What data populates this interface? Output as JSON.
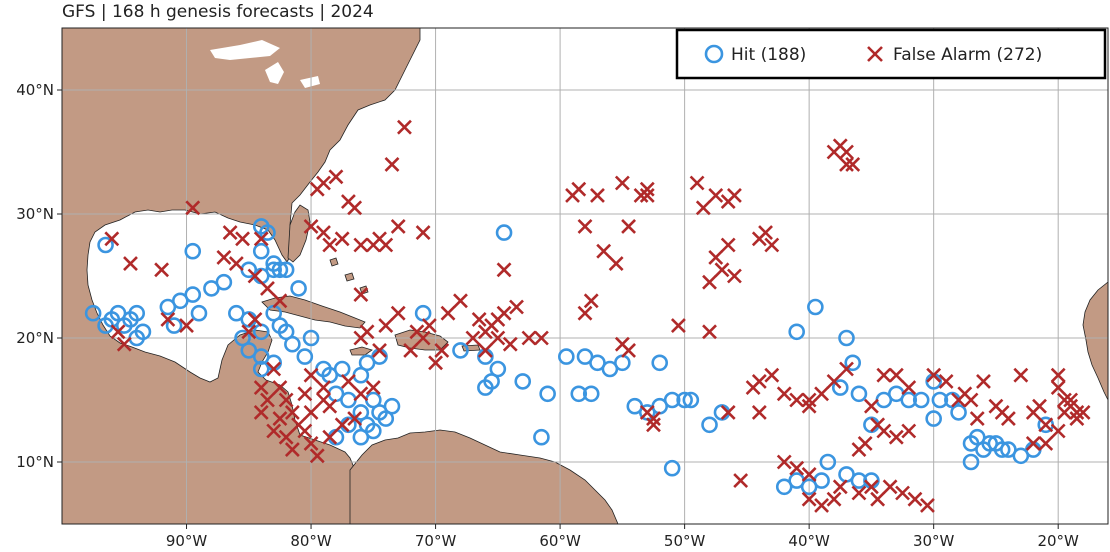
{
  "title": "GFS | 168 h genesis forecasts | 2024",
  "map": {
    "projection": "PlateCarree",
    "lon_range": [
      -100,
      -16
    ],
    "lat_range": [
      5,
      45
    ],
    "gridlines": true,
    "land_color": "#c29a84",
    "ocean_color": "#ffffff"
  },
  "axes": {
    "x_ticks": [
      {
        "lon": -90,
        "label": "90°W"
      },
      {
        "lon": -80,
        "label": "80°W"
      },
      {
        "lon": -70,
        "label": "70°W"
      },
      {
        "lon": -60,
        "label": "60°W"
      },
      {
        "lon": -50,
        "label": "50°W"
      },
      {
        "lon": -40,
        "label": "40°W"
      },
      {
        "lon": -30,
        "label": "30°W"
      },
      {
        "lon": -20,
        "label": "20°W"
      }
    ],
    "y_ticks": [
      {
        "lat": 10,
        "label": "10°N"
      },
      {
        "lat": 20,
        "label": "20°N"
      },
      {
        "lat": 30,
        "label": "30°N"
      },
      {
        "lat": 40,
        "label": "40°N"
      }
    ]
  },
  "legend": {
    "placement": "top-right",
    "hit_label": "Hit (188)",
    "false_alarm_label": "False Alarm (272)"
  },
  "colors": {
    "hit": "#3b95e0",
    "false_alarm": "#b02a2a",
    "grid": "#b0b0b0",
    "coast": "#222222"
  },
  "chart_data": {
    "type": "scatter",
    "series": [
      {
        "name": "Hit (188)",
        "marker": "circle",
        "points": [
          [
            -97.5,
            22
          ],
          [
            -96.5,
            21
          ],
          [
            -96,
            21.5
          ],
          [
            -95.5,
            22
          ],
          [
            -95,
            21
          ],
          [
            -94.5,
            21.5
          ],
          [
            -94,
            22
          ],
          [
            -93.5,
            20.5
          ],
          [
            -94,
            20
          ],
          [
            -91.5,
            22.5
          ],
          [
            -91,
            21
          ],
          [
            -90.5,
            23
          ],
          [
            -89.5,
            23.5
          ],
          [
            -89,
            22
          ],
          [
            -88,
            24
          ],
          [
            -87,
            24.5
          ],
          [
            -86,
            22
          ],
          [
            -85,
            21.5
          ],
          [
            -96.5,
            27.5
          ],
          [
            -89.5,
            27
          ],
          [
            -85,
            25.5
          ],
          [
            -84,
            27
          ],
          [
            -84,
            29
          ],
          [
            -83.5,
            28.5
          ],
          [
            -83,
            26
          ],
          [
            -82.5,
            25.5
          ],
          [
            -82,
            25.5
          ],
          [
            -84,
            25
          ],
          [
            -83,
            25.5
          ],
          [
            -81,
            24
          ],
          [
            -83,
            22
          ],
          [
            -82.5,
            21
          ],
          [
            -84,
            20.5
          ],
          [
            -82,
            20.5
          ],
          [
            -81.5,
            19.5
          ],
          [
            -80,
            20
          ],
          [
            -85.5,
            20
          ],
          [
            -85,
            19
          ],
          [
            -84,
            18.5
          ],
          [
            -84,
            17.5
          ],
          [
            -83,
            18
          ],
          [
            -80.5,
            18.5
          ],
          [
            -79,
            17.5
          ],
          [
            -78.5,
            17
          ],
          [
            -77.5,
            17.5
          ],
          [
            -76,
            17
          ],
          [
            -75.5,
            18
          ],
          [
            -74.5,
            18.5
          ],
          [
            -78,
            15.5
          ],
          [
            -77,
            15
          ],
          [
            -76,
            14
          ],
          [
            -75.5,
            13
          ],
          [
            -75,
            15
          ],
          [
            -74.5,
            14
          ],
          [
            -76,
            12
          ],
          [
            -75,
            12.5
          ],
          [
            -74,
            13.5
          ],
          [
            -73.5,
            14.5
          ],
          [
            -78,
            12
          ],
          [
            -77,
            13
          ],
          [
            -68,
            19
          ],
          [
            -66,
            18.5
          ],
          [
            -65,
            17.5
          ],
          [
            -66,
            16
          ],
          [
            -65.5,
            16.5
          ],
          [
            -63,
            16.5
          ],
          [
            -64.5,
            28.5
          ],
          [
            -71,
            22
          ],
          [
            -59.5,
            18.5
          ],
          [
            -58,
            18.5
          ],
          [
            -57,
            18
          ],
          [
            -56,
            17.5
          ],
          [
            -55,
            18
          ],
          [
            -54,
            14.5
          ],
          [
            -53,
            14
          ],
          [
            -52,
            14.5
          ],
          [
            -51,
            15
          ],
          [
            -50,
            15
          ],
          [
            -49.5,
            15
          ],
          [
            -47,
            14
          ],
          [
            -58.5,
            15.5
          ],
          [
            -57.5,
            15.5
          ],
          [
            -61,
            15.5
          ],
          [
            -61.5,
            12
          ],
          [
            -52,
            18
          ],
          [
            -51,
            9.5
          ],
          [
            -48,
            13
          ],
          [
            -41,
            20.5
          ],
          [
            -39.5,
            22.5
          ],
          [
            -37,
            20
          ],
          [
            -36.5,
            18
          ],
          [
            -37.5,
            16
          ],
          [
            -42,
            8
          ],
          [
            -41,
            8.5
          ],
          [
            -40,
            8
          ],
          [
            -39,
            8.5
          ],
          [
            -38.5,
            10
          ],
          [
            -37,
            9
          ],
          [
            -36,
            8.5
          ],
          [
            -35,
            8.5
          ],
          [
            -36,
            15.5
          ],
          [
            -35,
            13
          ],
          [
            -34,
            15
          ],
          [
            -33,
            15.5
          ],
          [
            -32,
            15
          ],
          [
            -31,
            15
          ],
          [
            -30,
            16.5
          ],
          [
            -29.5,
            15
          ],
          [
            -28,
            14
          ],
          [
            -30,
            13.5
          ],
          [
            -27,
            11.5
          ],
          [
            -26,
            11
          ],
          [
            -25,
            11.5
          ],
          [
            -24,
            11
          ],
          [
            -23,
            10.5
          ],
          [
            -22,
            11
          ],
          [
            -21,
            13
          ],
          [
            -27,
            10
          ],
          [
            -26.5,
            12
          ],
          [
            -25.5,
            11.5
          ],
          [
            -24.5,
            11
          ],
          [
            -28.5,
            15
          ]
        ]
      },
      {
        "name": "False Alarm (272)",
        "marker": "x",
        "points": [
          [
            -96,
            28
          ],
          [
            -94.5,
            26
          ],
          [
            -92,
            25.5
          ],
          [
            -89.5,
            30.5
          ],
          [
            -86.5,
            28.5
          ],
          [
            -85.5,
            28
          ],
          [
            -84,
            28
          ],
          [
            -87,
            26.5
          ],
          [
            -86,
            26
          ],
          [
            -84.5,
            25
          ],
          [
            -83.5,
            24
          ],
          [
            -82.5,
            23
          ],
          [
            -91.5,
            21.5
          ],
          [
            -90,
            21
          ],
          [
            -95.5,
            20.5
          ],
          [
            -95,
            19.5
          ],
          [
            -84.5,
            21.5
          ],
          [
            -85,
            20.5
          ],
          [
            -84,
            16
          ],
          [
            -83,
            17.5
          ],
          [
            -83.5,
            15
          ],
          [
            -82.5,
            16
          ],
          [
            -82,
            15
          ],
          [
            -81.5,
            14
          ],
          [
            -81,
            13
          ],
          [
            -80.5,
            15.5
          ],
          [
            -80,
            14
          ],
          [
            -79,
            15
          ],
          [
            -78.5,
            14.5
          ],
          [
            -80.5,
            12.5
          ],
          [
            -80,
            11.5
          ],
          [
            -79.5,
            10.5
          ],
          [
            -78.5,
            12
          ],
          [
            -77.5,
            13
          ],
          [
            -76.5,
            13.5
          ],
          [
            -80,
            17
          ],
          [
            -79,
            16
          ],
          [
            -77,
            16.5
          ],
          [
            -76,
            15.5
          ],
          [
            -75,
            16
          ],
          [
            -82,
            12
          ],
          [
            -81.5,
            11
          ],
          [
            -82.5,
            13.5
          ],
          [
            -83,
            12.5
          ],
          [
            -84,
            14
          ],
          [
            -79.5,
            32
          ],
          [
            -79,
            32.5
          ],
          [
            -78,
            33
          ],
          [
            -77,
            31
          ],
          [
            -76.5,
            30.5
          ],
          [
            -80,
            29
          ],
          [
            -79,
            28.5
          ],
          [
            -78.5,
            27.5
          ],
          [
            -77.5,
            28
          ],
          [
            -76,
            27.5
          ],
          [
            -75,
            27.5
          ],
          [
            -74.5,
            28
          ],
          [
            -74,
            27.5
          ],
          [
            -73,
            29
          ],
          [
            -71,
            28.5
          ],
          [
            -76,
            23.5
          ],
          [
            -75.5,
            20.5
          ],
          [
            -74,
            21
          ],
          [
            -73,
            22
          ],
          [
            -73.5,
            34
          ],
          [
            -72.5,
            37
          ],
          [
            -76,
            20
          ],
          [
            -74.5,
            19
          ],
          [
            -72,
            19
          ],
          [
            -71.5,
            20.5
          ],
          [
            -70.5,
            21
          ],
          [
            -69,
            22
          ],
          [
            -68,
            23
          ],
          [
            -67,
            20
          ],
          [
            -66.5,
            21.5
          ],
          [
            -66,
            20.5
          ],
          [
            -65.5,
            21
          ],
          [
            -65,
            21.5
          ],
          [
            -64.5,
            22
          ],
          [
            -65,
            20
          ],
          [
            -64,
            19.5
          ],
          [
            -62.5,
            20
          ],
          [
            -61.5,
            20
          ],
          [
            -64.5,
            25.5
          ],
          [
            -70,
            18
          ],
          [
            -69.5,
            19
          ],
          [
            -63.5,
            22.5
          ],
          [
            -71,
            20
          ],
          [
            -66,
            19
          ],
          [
            -59,
            31.5
          ],
          [
            -58.5,
            32
          ],
          [
            -58,
            29
          ],
          [
            -57,
            31.5
          ],
          [
            -55,
            32.5
          ],
          [
            -53.5,
            31.5
          ],
          [
            -53,
            32
          ],
          [
            -53,
            31.5
          ],
          [
            -58,
            22
          ],
          [
            -57.5,
            23
          ],
          [
            -56.5,
            27
          ],
          [
            -55.5,
            26
          ],
          [
            -54.5,
            29
          ],
          [
            -55,
            19.5
          ],
          [
            -54.5,
            19
          ],
          [
            -53,
            14
          ],
          [
            -52.5,
            13.5
          ],
          [
            -52.5,
            13
          ],
          [
            -50.5,
            21
          ],
          [
            -48,
            20.5
          ],
          [
            -49,
            32.5
          ],
          [
            -48.5,
            30.5
          ],
          [
            -47.5,
            31.5
          ],
          [
            -46.5,
            31
          ],
          [
            -46,
            31.5
          ],
          [
            -48,
            24.5
          ],
          [
            -47.5,
            26.5
          ],
          [
            -47,
            25.5
          ],
          [
            -46.5,
            27.5
          ],
          [
            -46,
            25
          ],
          [
            -44,
            28
          ],
          [
            -43.5,
            28.5
          ],
          [
            -43,
            27.5
          ],
          [
            -44.5,
            16
          ],
          [
            -44,
            16.5
          ],
          [
            -43,
            17
          ],
          [
            -42,
            15.5
          ],
          [
            -41,
            15
          ],
          [
            -40,
            14.5
          ],
          [
            -40,
            15
          ],
          [
            -39,
            15.5
          ],
          [
            -38,
            16.5
          ],
          [
            -38,
            35
          ],
          [
            -37.5,
            35.5
          ],
          [
            -37,
            35
          ],
          [
            -37,
            34
          ],
          [
            -36.5,
            34
          ],
          [
            -46.5,
            14
          ],
          [
            -45.5,
            8.5
          ],
          [
            -44,
            14
          ],
          [
            -42,
            10
          ],
          [
            -41,
            9.5
          ],
          [
            -40,
            9
          ],
          [
            -40,
            7
          ],
          [
            -39,
            6.5
          ],
          [
            -38,
            7
          ],
          [
            -37.5,
            8
          ],
          [
            -36,
            7.5
          ],
          [
            -35,
            8
          ],
          [
            -34.5,
            7
          ],
          [
            -33.5,
            8
          ],
          [
            -32.5,
            7.5
          ],
          [
            -31.5,
            7
          ],
          [
            -30.5,
            6.5
          ],
          [
            -37,
            17.5
          ],
          [
            -35,
            14.5
          ],
          [
            -34.5,
            13
          ],
          [
            -34,
            12.5
          ],
          [
            -33,
            12
          ],
          [
            -32,
            12.5
          ],
          [
            -35.5,
            11.5
          ],
          [
            -36,
            11
          ],
          [
            -34,
            17
          ],
          [
            -33,
            17
          ],
          [
            -32,
            16
          ],
          [
            -30,
            17
          ],
          [
            -29,
            16.5
          ],
          [
            -27.5,
            15.5
          ],
          [
            -27,
            15
          ],
          [
            -26,
            16.5
          ],
          [
            -25,
            14.5
          ],
          [
            -24,
            13.5
          ],
          [
            -23,
            17
          ],
          [
            -22,
            14
          ],
          [
            -21.5,
            14.5
          ],
          [
            -21,
            13
          ],
          [
            -20,
            12.5
          ],
          [
            -19.5,
            14
          ],
          [
            -19,
            15
          ],
          [
            -19,
            14.5
          ],
          [
            -18.5,
            14
          ],
          [
            -18.5,
            13.5
          ],
          [
            -18,
            14
          ],
          [
            -19.5,
            15
          ],
          [
            -20,
            16
          ],
          [
            -20,
            17
          ],
          [
            -22,
            11.5
          ],
          [
            -21,
            11.5
          ],
          [
            -24.5,
            14
          ],
          [
            -26.5,
            13.5
          ],
          [
            -28,
            15
          ]
        ]
      }
    ]
  }
}
